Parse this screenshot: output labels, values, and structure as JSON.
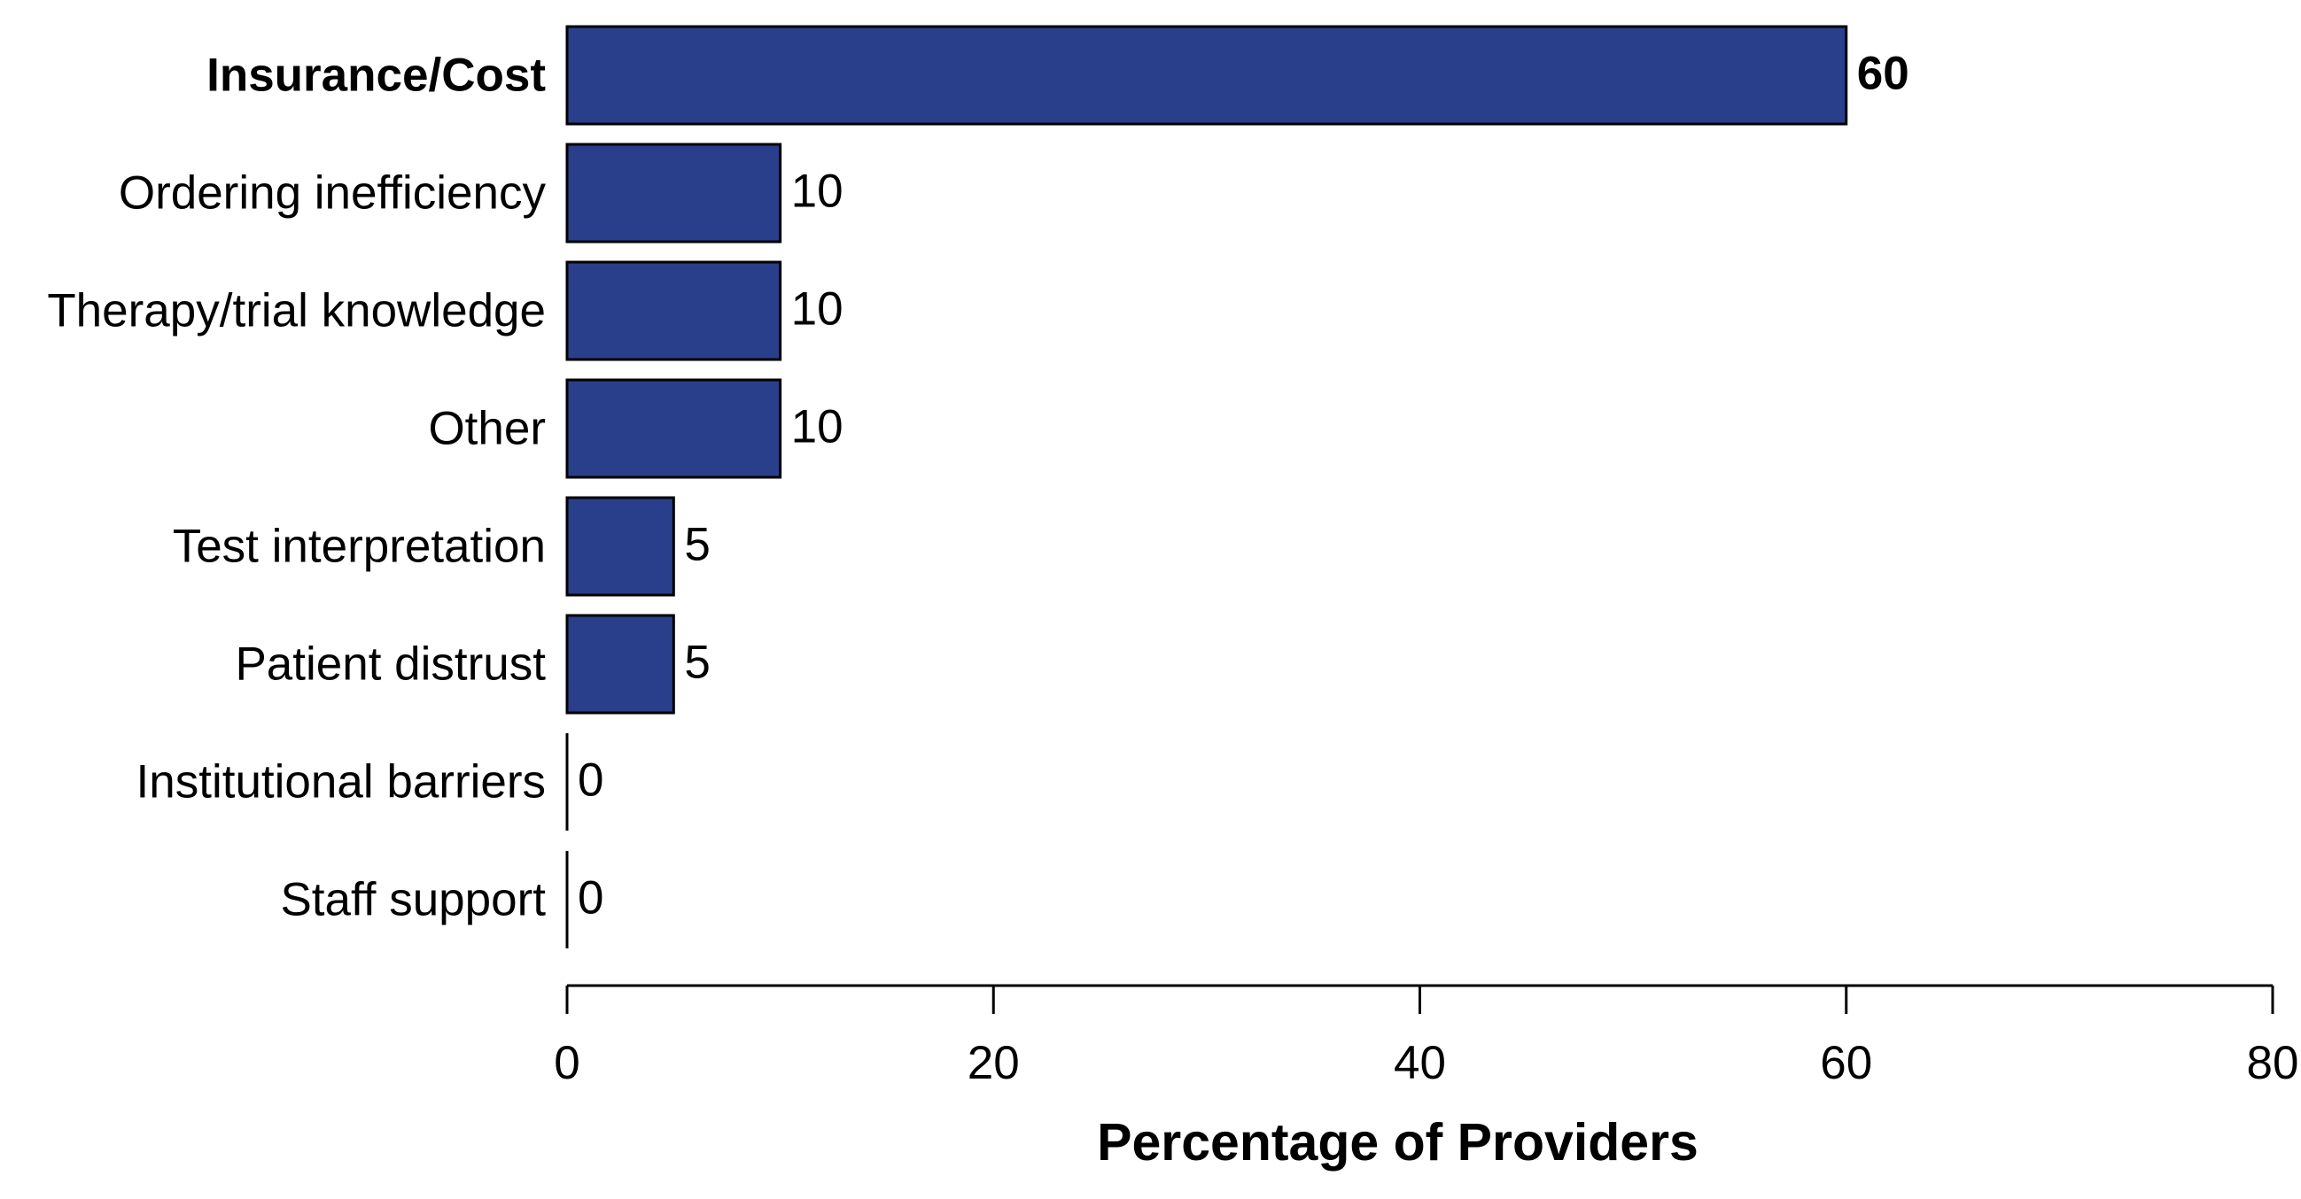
{
  "chart_data": {
    "type": "bar",
    "orientation": "horizontal",
    "categories": [
      "Insurance/Cost",
      "Ordering inefficiency",
      "Therapy/trial knowledge",
      "Other",
      "Test interpretation",
      "Patient distrust",
      "Institutional barriers",
      "Staff support"
    ],
    "values": [
      60,
      10,
      10,
      10,
      5,
      5,
      0,
      0
    ],
    "value_labels": [
      "60",
      "10",
      "10",
      "10",
      "5",
      "5",
      "0",
      "0"
    ],
    "highlighted_category": "Insurance/Cost",
    "title": "",
    "xlabel": "Percentage of Providers",
    "ylabel": "",
    "xlim": [
      0,
      80
    ],
    "x_ticks": [
      0,
      20,
      40,
      60,
      80
    ],
    "x_tick_labels": [
      "0",
      "20",
      "40",
      "60",
      "80"
    ],
    "grid": false,
    "legend": "none",
    "colors": {
      "bar_fill": "#2a3f8c",
      "bar_stroke": "#000000",
      "axis": "#000000"
    }
  }
}
